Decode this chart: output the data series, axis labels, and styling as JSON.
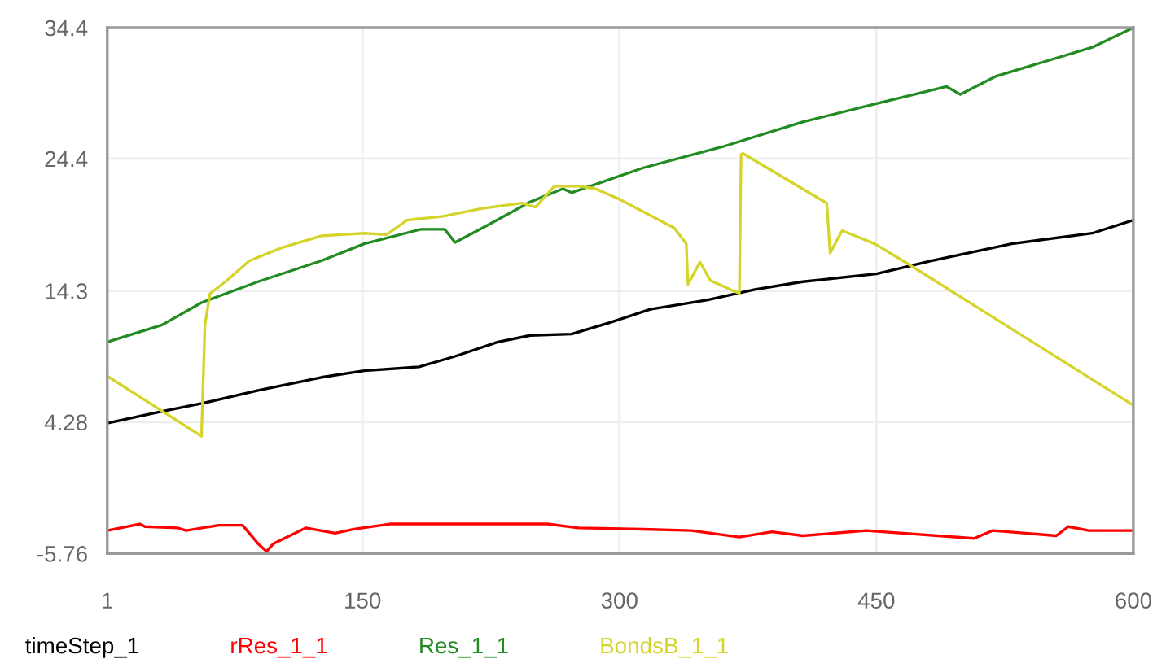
{
  "chart_data": {
    "type": "line",
    "xlim": [
      1,
      600
    ],
    "xticks": [
      1,
      150,
      300,
      450,
      600
    ],
    "ylim": [
      -5.76,
      34.4
    ],
    "yticks": [
      -5.76,
      4.28,
      14.3,
      24.4,
      34.4
    ],
    "grid": true,
    "legend": "bottom left",
    "marker": "none",
    "line_style": "solid",
    "series": [
      {
        "name": "timeStep_1",
        "color": "#000000",
        "x": [
          1,
          33,
          56,
          89,
          126,
          151,
          183,
          204,
          229,
          248,
          272,
          295,
          318,
          351,
          379,
          407,
          450,
          482,
          529,
          576,
          600
        ],
        "values": [
          4.2,
          5.1,
          5.7,
          6.7,
          7.7,
          8.2,
          8.5,
          9.3,
          10.4,
          10.9,
          11.0,
          11.9,
          12.9,
          13.6,
          14.4,
          15.0,
          15.6,
          16.6,
          17.9,
          18.7,
          19.7
        ]
      },
      {
        "name": "rRes_1_1",
        "color": "#ff0000",
        "x": [
          1,
          20,
          23,
          42,
          47,
          66,
          80,
          89,
          94,
          98,
          117,
          134,
          145,
          166,
          258,
          276,
          314,
          342,
          370,
          389,
          407,
          444,
          507,
          518,
          555,
          562,
          574,
          600
        ],
        "values": [
          -4.0,
          -3.5,
          -3.7,
          -3.8,
          -4.0,
          -3.6,
          -3.6,
          -5.0,
          -5.6,
          -5.0,
          -3.8,
          -4.2,
          -3.9,
          -3.5,
          -3.5,
          -3.8,
          -3.9,
          -4.0,
          -4.5,
          -4.1,
          -4.4,
          -4.0,
          -4.6,
          -4.0,
          -4.4,
          -3.7,
          -4.0,
          -4.0
        ]
      },
      {
        "name": "Res_1_1",
        "color": "#228b22",
        "x": [
          1,
          33,
          56,
          89,
          126,
          151,
          184,
          198,
          204,
          220,
          248,
          267,
          272,
          314,
          360,
          407,
          450,
          491,
          499,
          520,
          576,
          600
        ],
        "values": [
          10.4,
          11.7,
          13.4,
          15.0,
          16.6,
          17.9,
          19.0,
          19.0,
          18.0,
          19.1,
          21.1,
          22.1,
          21.8,
          23.7,
          25.3,
          27.2,
          28.6,
          29.9,
          29.3,
          30.7,
          32.9,
          34.4
        ]
      },
      {
        "name": "BondsB_1_1",
        "color": "#d4d42a",
        "x": [
          1,
          56,
          58,
          61,
          70,
          84,
          103,
          126,
          151,
          164,
          176,
          197,
          220,
          243,
          251,
          262,
          276,
          286,
          300,
          332,
          339,
          340,
          347,
          353,
          370,
          371,
          372,
          421,
          423,
          430,
          449,
          468,
          600
        ],
        "values": [
          7.8,
          3.2,
          11.7,
          14.1,
          15.0,
          16.6,
          17.6,
          18.5,
          18.7,
          18.6,
          19.7,
          20.0,
          20.6,
          21.0,
          20.7,
          22.3,
          22.3,
          22.1,
          21.3,
          19.1,
          17.9,
          14.8,
          16.5,
          15.1,
          14.1,
          24.7,
          24.8,
          21.0,
          17.2,
          18.9,
          17.9,
          16.4,
          5.56
        ]
      }
    ]
  }
}
